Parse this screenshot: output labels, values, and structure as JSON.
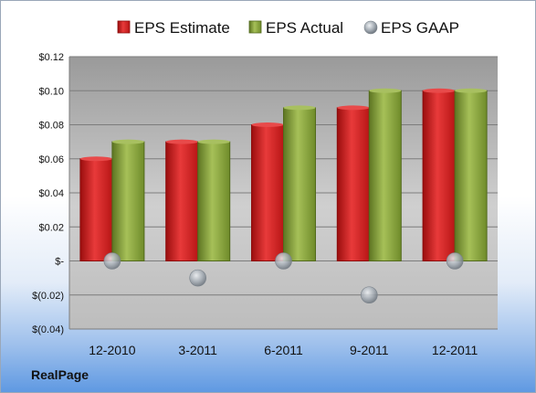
{
  "brand": "RealPage",
  "chart_data": {
    "type": "bar",
    "categories": [
      "12-2010",
      "3-2011",
      "6-2011",
      "9-2011",
      "12-2011"
    ],
    "series": [
      {
        "name": "EPS Estimate",
        "kind": "bar",
        "color": "#d42020",
        "values": [
          0.06,
          0.07,
          0.08,
          0.09,
          0.1
        ]
      },
      {
        "name": "EPS Actual",
        "kind": "bar",
        "color": "#8aa63a",
        "values": [
          0.07,
          0.07,
          0.09,
          0.1,
          0.1
        ]
      },
      {
        "name": "EPS GAAP",
        "kind": "marker",
        "color": "#9aa4ae",
        "values": [
          0.0,
          -0.01,
          0.0,
          -0.02,
          0.0
        ]
      }
    ],
    "ylim": [
      -0.04,
      0.12
    ],
    "yticks": [
      0.12,
      0.1,
      0.08,
      0.06,
      0.04,
      0.02,
      0.0,
      -0.02,
      -0.04
    ],
    "ytick_labels": [
      "$0.12",
      "$0.10",
      "$0.08",
      "$0.06",
      "$0.04",
      "$0.02",
      "$-",
      "$(0.02)",
      "$(0.04)"
    ],
    "grid": true,
    "legend": "top",
    "title": "",
    "xlabel": "",
    "ylabel": ""
  }
}
